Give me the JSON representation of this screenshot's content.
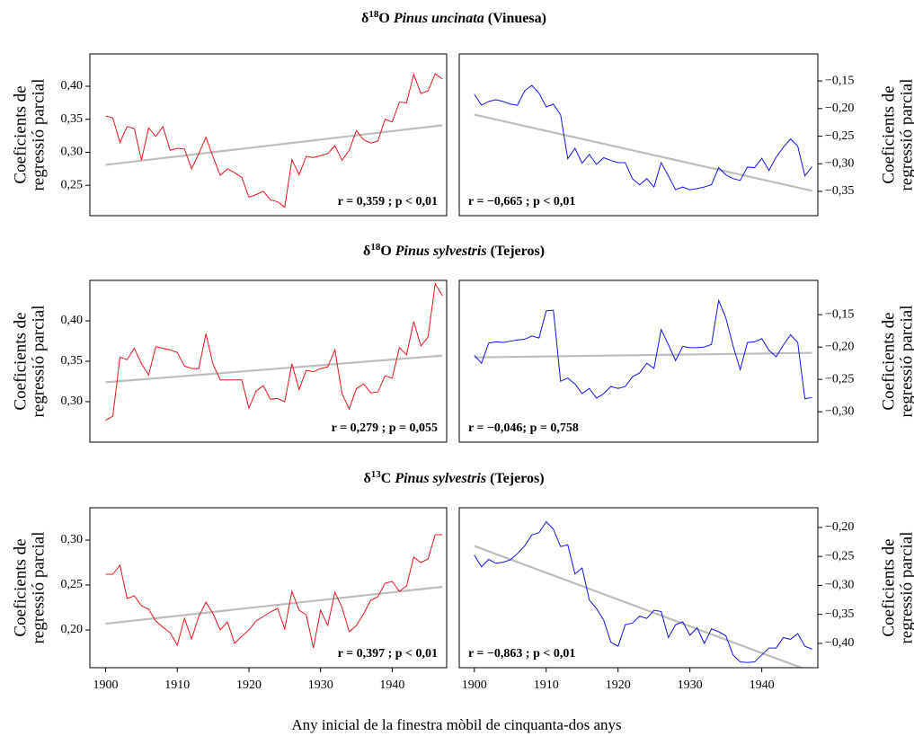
{
  "row_titles": [
    {
      "symbol": "δ",
      "isotope": "18",
      "element": "O",
      "species": "Pinus uncinata",
      "site": "(Vinuesa)"
    },
    {
      "symbol": "δ",
      "isotope": "18",
      "element": "O",
      "species": "Pinus sylvestris",
      "site": "(Tejeros)"
    },
    {
      "symbol": "δ",
      "isotope": "13",
      "element": "C",
      "species": "Pinus sylvestris",
      "site": "(Tejeros)"
    }
  ],
  "x_label": "Any inicial de la finestra mòbil de cinquanta-dos anys",
  "chart_data": [
    {
      "type": "line",
      "y_side": "left",
      "ylabel": [
        "Coeficients de",
        "regressió parcial"
      ],
      "annotation": "r = 0,359 ; p < 0,01",
      "x": [
        1900,
        1901,
        1902,
        1903,
        1904,
        1905,
        1906,
        1907,
        1908,
        1909,
        1910,
        1911,
        1912,
        1913,
        1914,
        1915,
        1916,
        1917,
        1918,
        1919,
        1920,
        1921,
        1922,
        1923,
        1924,
        1925,
        1926,
        1927,
        1928,
        1929,
        1930,
        1931,
        1932,
        1933,
        1934,
        1935,
        1936,
        1937,
        1938,
        1939,
        1940,
        1941,
        1942,
        1943,
        1944,
        1945,
        1946,
        1947
      ],
      "series": [
        {
          "color": "#e8141c",
          "values": [
            0.355,
            0.352,
            0.315,
            0.339,
            0.336,
            0.288,
            0.337,
            0.324,
            0.339,
            0.303,
            0.306,
            0.305,
            0.275,
            0.298,
            0.323,
            0.293,
            0.265,
            0.275,
            0.269,
            0.262,
            0.232,
            0.236,
            0.241,
            0.228,
            0.225,
            0.217,
            0.289,
            0.266,
            0.294,
            0.292,
            0.295,
            0.298,
            0.31,
            0.288,
            0.303,
            0.333,
            0.319,
            0.314,
            0.317,
            0.35,
            0.346,
            0.376,
            0.375,
            0.418,
            0.389,
            0.393,
            0.419,
            0.411
          ]
        }
      ],
      "trend": {
        "color": "#bdbdbd",
        "x": [
          1900,
          1947
        ],
        "values": [
          0.281,
          0.341
        ]
      },
      "xlim": [
        1897.8,
        1947.6
      ],
      "ylim": [
        0.204,
        0.449
      ],
      "yticks": [
        {
          "value": 0.25,
          "label": "0,25"
        },
        {
          "value": 0.3,
          "label": "0,30"
        },
        {
          "value": 0.35,
          "label": "0,35"
        },
        {
          "value": 0.4,
          "label": "0,40"
        }
      ]
    },
    {
      "type": "line",
      "y_side": "right",
      "ylabel": [
        "Coeficients de",
        "regressió parcial"
      ],
      "annotation": "r = −0,665 ; p < 0,01",
      "x": [
        1900,
        1901,
        1902,
        1903,
        1904,
        1905,
        1906,
        1907,
        1908,
        1909,
        1910,
        1911,
        1912,
        1913,
        1914,
        1915,
        1916,
        1917,
        1918,
        1919,
        1920,
        1921,
        1922,
        1923,
        1924,
        1925,
        1926,
        1927,
        1928,
        1929,
        1930,
        1931,
        1932,
        1933,
        1934,
        1935,
        1936,
        1937,
        1938,
        1939,
        1940,
        1941,
        1942,
        1943,
        1944,
        1945,
        1946,
        1947
      ],
      "series": [
        {
          "color": "#1414e6",
          "values": [
            -0.174,
            -0.194,
            -0.187,
            -0.184,
            -0.187,
            -0.192,
            -0.194,
            -0.168,
            -0.158,
            -0.172,
            -0.197,
            -0.192,
            -0.211,
            -0.291,
            -0.272,
            -0.299,
            -0.283,
            -0.301,
            -0.289,
            -0.294,
            -0.298,
            -0.298,
            -0.327,
            -0.338,
            -0.327,
            -0.342,
            -0.298,
            -0.322,
            -0.347,
            -0.342,
            -0.347,
            -0.345,
            -0.342,
            -0.338,
            -0.307,
            -0.32,
            -0.327,
            -0.33,
            -0.306,
            -0.307,
            -0.29,
            -0.312,
            -0.288,
            -0.27,
            -0.255,
            -0.268,
            -0.322,
            -0.305
          ]
        }
      ],
      "trend": {
        "color": "#bdbdbd",
        "x": [
          1900,
          1947
        ],
        "values": [
          -0.211,
          -0.349
        ]
      },
      "xlim": [
        1897.9,
        1947.8
      ],
      "ylim": [
        -0.394,
        -0.101
      ],
      "yticks": [
        {
          "value": -0.35,
          "label": "−0,35"
        },
        {
          "value": -0.3,
          "label": "−0,30"
        },
        {
          "value": -0.25,
          "label": "−0,25"
        },
        {
          "value": -0.2,
          "label": "−0,20"
        },
        {
          "value": -0.15,
          "label": "−0,15"
        }
      ]
    },
    {
      "type": "line",
      "y_side": "left",
      "ylabel": [
        "Coeficients de",
        "regressió parcial"
      ],
      "annotation": "r = 0,279 ; p = 0,055",
      "x": [
        1900,
        1901,
        1902,
        1903,
        1904,
        1905,
        1906,
        1907,
        1908,
        1909,
        1910,
        1911,
        1912,
        1913,
        1914,
        1915,
        1916,
        1917,
        1918,
        1919,
        1920,
        1921,
        1922,
        1923,
        1924,
        1925,
        1926,
        1927,
        1928,
        1929,
        1930,
        1931,
        1932,
        1933,
        1934,
        1935,
        1936,
        1937,
        1938,
        1939,
        1940,
        1941,
        1942,
        1943,
        1944,
        1945,
        1946,
        1947
      ],
      "series": [
        {
          "color": "#e8141c",
          "values": [
            0.277,
            0.282,
            0.355,
            0.352,
            0.366,
            0.347,
            0.333,
            0.368,
            0.366,
            0.364,
            0.361,
            0.344,
            0.341,
            0.341,
            0.384,
            0.346,
            0.327,
            0.327,
            0.327,
            0.327,
            0.292,
            0.313,
            0.32,
            0.303,
            0.304,
            0.3,
            0.347,
            0.315,
            0.339,
            0.337,
            0.341,
            0.343,
            0.364,
            0.31,
            0.291,
            0.316,
            0.322,
            0.311,
            0.312,
            0.332,
            0.329,
            0.367,
            0.358,
            0.399,
            0.369,
            0.38,
            0.446,
            0.431
          ]
        }
      ],
      "trend": {
        "color": "#bdbdbd",
        "x": [
          1900,
          1947
        ],
        "values": [
          0.324,
          0.357
        ]
      },
      "xlim": [
        1897.8,
        1947.6
      ],
      "ylim": [
        0.25,
        0.45
      ],
      "yticks": [
        {
          "value": 0.3,
          "label": "0,30"
        },
        {
          "value": 0.35,
          "label": "0,35"
        },
        {
          "value": 0.4,
          "label": "0,40"
        }
      ]
    },
    {
      "type": "line",
      "y_side": "right",
      "ylabel": [
        "Coeficients de",
        "regressió parcial"
      ],
      "annotation": "r = −0,046; p = 0,758",
      "x": [
        1900,
        1901,
        1902,
        1903,
        1904,
        1905,
        1906,
        1907,
        1908,
        1909,
        1910,
        1911,
        1912,
        1913,
        1914,
        1915,
        1916,
        1917,
        1918,
        1919,
        1920,
        1921,
        1922,
        1923,
        1924,
        1925,
        1926,
        1927,
        1928,
        1929,
        1930,
        1931,
        1932,
        1933,
        1934,
        1935,
        1936,
        1937,
        1938,
        1939,
        1940,
        1941,
        1942,
        1943,
        1944,
        1945,
        1946,
        1947
      ],
      "series": [
        {
          "color": "#1414e6",
          "values": [
            -0.213,
            -0.225,
            -0.194,
            -0.192,
            -0.193,
            -0.191,
            -0.189,
            -0.188,
            -0.183,
            -0.186,
            -0.144,
            -0.143,
            -0.253,
            -0.248,
            -0.257,
            -0.272,
            -0.264,
            -0.279,
            -0.272,
            -0.261,
            -0.264,
            -0.261,
            -0.246,
            -0.24,
            -0.225,
            -0.233,
            -0.173,
            -0.196,
            -0.221,
            -0.199,
            -0.201,
            -0.201,
            -0.2,
            -0.196,
            -0.128,
            -0.155,
            -0.198,
            -0.235,
            -0.193,
            -0.192,
            -0.187,
            -0.205,
            -0.215,
            -0.197,
            -0.181,
            -0.193,
            -0.28,
            -0.278
          ]
        }
      ],
      "trend": {
        "color": "#bdbdbd",
        "x": [
          1900,
          1947
        ],
        "values": [
          -0.216,
          -0.209
        ]
      },
      "xlim": [
        1897.9,
        1947.8
      ],
      "ylim": [
        -0.347,
        -0.097
      ],
      "yticks": [
        {
          "value": -0.3,
          "label": "−0,30"
        },
        {
          "value": -0.25,
          "label": "−0,25"
        },
        {
          "value": -0.2,
          "label": "−0,20"
        },
        {
          "value": -0.15,
          "label": "−0,15"
        }
      ]
    },
    {
      "type": "line",
      "y_side": "left",
      "ylabel": [
        "Coeficients de",
        "regressió parcial"
      ],
      "annotation": "r = 0,397 ; p < 0,01",
      "x": [
        1900,
        1901,
        1902,
        1903,
        1904,
        1905,
        1906,
        1907,
        1908,
        1909,
        1910,
        1911,
        1912,
        1913,
        1914,
        1915,
        1916,
        1917,
        1918,
        1919,
        1920,
        1921,
        1922,
        1923,
        1924,
        1925,
        1926,
        1927,
        1928,
        1929,
        1930,
        1931,
        1932,
        1933,
        1934,
        1935,
        1936,
        1937,
        1938,
        1939,
        1940,
        1941,
        1942,
        1943,
        1944,
        1945,
        1946,
        1947
      ],
      "series": [
        {
          "color": "#e8141c",
          "values": [
            0.262,
            0.262,
            0.272,
            0.235,
            0.238,
            0.227,
            0.223,
            0.21,
            0.203,
            0.197,
            0.183,
            0.213,
            0.19,
            0.215,
            0.231,
            0.218,
            0.2,
            0.209,
            0.185,
            0.193,
            0.2,
            0.21,
            0.215,
            0.22,
            0.224,
            0.201,
            0.243,
            0.222,
            0.217,
            0.18,
            0.222,
            0.205,
            0.242,
            0.225,
            0.198,
            0.205,
            0.218,
            0.233,
            0.237,
            0.252,
            0.254,
            0.243,
            0.249,
            0.281,
            0.275,
            0.279,
            0.306,
            0.306
          ]
        }
      ],
      "trend": {
        "color": "#bdbdbd",
        "x": [
          1900,
          1947
        ],
        "values": [
          0.207,
          0.248
        ]
      },
      "xlim": [
        1897.8,
        1947.6
      ],
      "ylim": [
        0.158,
        0.336
      ],
      "xticks": [
        1900,
        1910,
        1920,
        1930,
        1940
      ],
      "yticks": [
        {
          "value": 0.2,
          "label": "0,20"
        },
        {
          "value": 0.25,
          "label": "0,25"
        },
        {
          "value": 0.3,
          "label": "0,30"
        }
      ]
    },
    {
      "type": "line",
      "y_side": "right",
      "ylabel": [
        "Coeficients de",
        "regressió parcial"
      ],
      "annotation": "r = −0,863 ; p < 0,01",
      "x": [
        1900,
        1901,
        1902,
        1903,
        1904,
        1905,
        1906,
        1907,
        1908,
        1909,
        1910,
        1911,
        1912,
        1913,
        1914,
        1915,
        1916,
        1917,
        1918,
        1919,
        1920,
        1921,
        1922,
        1923,
        1924,
        1925,
        1926,
        1927,
        1928,
        1929,
        1930,
        1931,
        1932,
        1933,
        1934,
        1935,
        1936,
        1937,
        1938,
        1939,
        1940,
        1941,
        1942,
        1943,
        1944,
        1945,
        1946,
        1947
      ],
      "series": [
        {
          "color": "#1414e6",
          "values": [
            -0.248,
            -0.268,
            -0.255,
            -0.262,
            -0.26,
            -0.256,
            -0.245,
            -0.232,
            -0.213,
            -0.209,
            -0.19,
            -0.203,
            -0.233,
            -0.23,
            -0.28,
            -0.27,
            -0.325,
            -0.34,
            -0.36,
            -0.398,
            -0.405,
            -0.368,
            -0.365,
            -0.353,
            -0.357,
            -0.343,
            -0.345,
            -0.39,
            -0.368,
            -0.363,
            -0.386,
            -0.373,
            -0.4,
            -0.375,
            -0.38,
            -0.387,
            -0.42,
            -0.432,
            -0.433,
            -0.432,
            -0.42,
            -0.408,
            -0.408,
            -0.39,
            -0.393,
            -0.383,
            -0.405,
            -0.41
          ]
        }
      ],
      "trend": {
        "color": "#bdbdbd",
        "x": [
          1900,
          1947
        ],
        "values": [
          -0.232,
          -0.449
        ]
      },
      "xlim": [
        1897.9,
        1947.8
      ],
      "ylim": [
        -0.442,
        -0.166
      ],
      "xticks": [
        1900,
        1910,
        1920,
        1930,
        1940
      ],
      "yticks": [
        {
          "value": -0.4,
          "label": "−0,40"
        },
        {
          "value": -0.35,
          "label": "−0,35"
        },
        {
          "value": -0.3,
          "label": "−0,30"
        },
        {
          "value": -0.25,
          "label": "−0,25"
        },
        {
          "value": -0.2,
          "label": "−0,20"
        }
      ]
    }
  ]
}
